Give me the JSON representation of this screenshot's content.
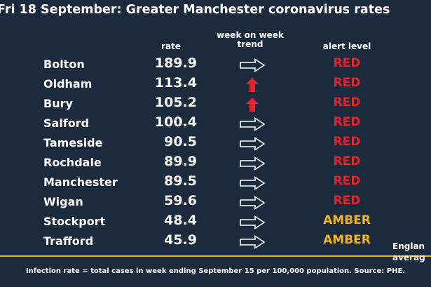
{
  "title": "Fri 18 September: Greater Manchester coronavirus rates",
  "headers": {
    "rate": "rate",
    "trend_line1": "week on week",
    "trend_line2": "trend",
    "alert": "alert level"
  },
  "rows": [
    {
      "name": "Bolton",
      "rate": "189.9",
      "trend": "arrow-right-outline-icon",
      "alert": "RED"
    },
    {
      "name": "Oldham",
      "rate": "113.4",
      "trend": "arrow-up-red-icon",
      "alert": "RED"
    },
    {
      "name": "Bury",
      "rate": "105.2",
      "trend": "arrow-up-red-icon",
      "alert": "RED"
    },
    {
      "name": "Salford",
      "rate": "100.4",
      "trend": "arrow-right-outline-icon",
      "alert": "RED"
    },
    {
      "name": "Tameside",
      "rate": "90.5",
      "trend": "arrow-right-outline-icon",
      "alert": "RED"
    },
    {
      "name": "Rochdale",
      "rate": "89.9",
      "trend": "arrow-right-outline-icon",
      "alert": "RED"
    },
    {
      "name": "Manchester",
      "rate": "89.5",
      "trend": "arrow-right-outline-icon",
      "alert": "RED"
    },
    {
      "name": "Wigan",
      "rate": "59.6",
      "trend": "arrow-right-outline-icon",
      "alert": "RED"
    },
    {
      "name": "Stockport",
      "rate": "48.4",
      "trend": "arrow-right-outline-icon",
      "alert": "AMBER"
    },
    {
      "name": "Trafford",
      "rate": "45.9",
      "trend": "arrow-right-outline-icon",
      "alert": "AMBER"
    }
  ],
  "england_label_line1": "Englan",
  "england_label_line2": "averag",
  "footnote": "Infection rate = total cases in week ending September 15 per 100,000 population. Source: PHE.",
  "colors": {
    "background": "#1b2a3c",
    "red": "#e3262d",
    "amber": "#f2b51c",
    "text": "#ffffff"
  }
}
